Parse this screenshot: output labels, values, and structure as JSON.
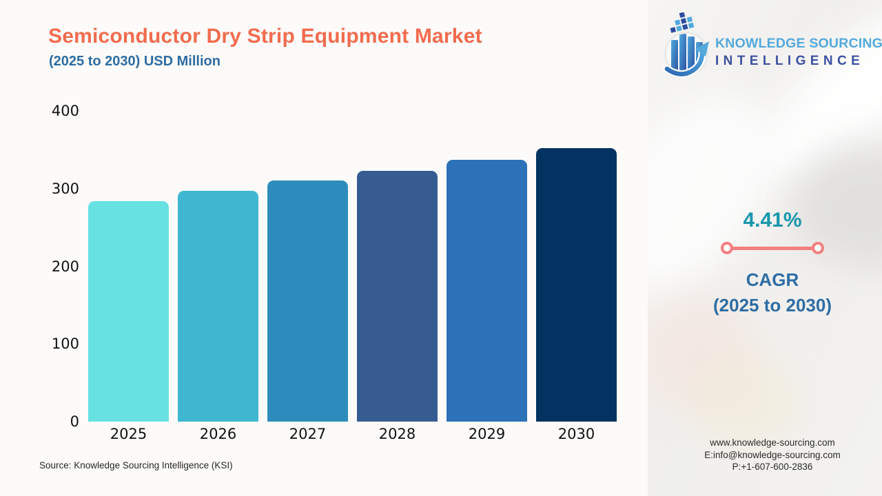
{
  "header": {
    "title": "Semiconductor Dry Strip Equipment Market",
    "subtitle": "(2025 to 2030) USD Million"
  },
  "logo": {
    "line1": "KNOWLEDGE SOURCING",
    "line2": "INTELLIGENCE",
    "icon": "globe-bar-chart-growth-arrow"
  },
  "cagr": {
    "value": "4.41%",
    "label": "CAGR",
    "period": "(2025 to 2030)"
  },
  "contact": {
    "website": "www.knowledge-sourcing.com",
    "email": "E:info@knowledge-sourcing.com",
    "phone": "P:+1-607-600-2836"
  },
  "footer": {
    "source": "Source: Knowledge Sourcing Intelligence (KSI)"
  },
  "colors": {
    "title": "#F26B4E",
    "subtitle": "#2D6CA2",
    "cagr_value_teal": "#1796AB",
    "cagr_text_blue": "#2E6DA4",
    "divider_coral": "#F37F7F",
    "logo_light_blue": "#53A9DB",
    "logo_indigo": "#3C50A0"
  },
  "chart_data": {
    "type": "bar",
    "title": "Semiconductor Dry Strip Equipment Market",
    "subtitle": "(2025 to 2030) USD Million",
    "categories": [
      "2025",
      "2026",
      "2027",
      "2028",
      "2029",
      "2030"
    ],
    "values": [
      284,
      297,
      310,
      323,
      337,
      352
    ],
    "bar_colors": [
      "#68E1E3",
      "#3FB7D0",
      "#2E8CBC",
      "#365C92",
      "#2B72B8",
      "#053361"
    ],
    "xlabel": "",
    "ylabel": "",
    "ylim": [
      0,
      400
    ],
    "yticks": [
      0,
      100,
      200,
      300,
      400
    ],
    "grid": false,
    "legend": false,
    "data_labels": false,
    "cagr_annotation": "4.41% CAGR (2025 to 2030)",
    "source": "Source: Knowledge Sourcing Intelligence (KSI)"
  }
}
